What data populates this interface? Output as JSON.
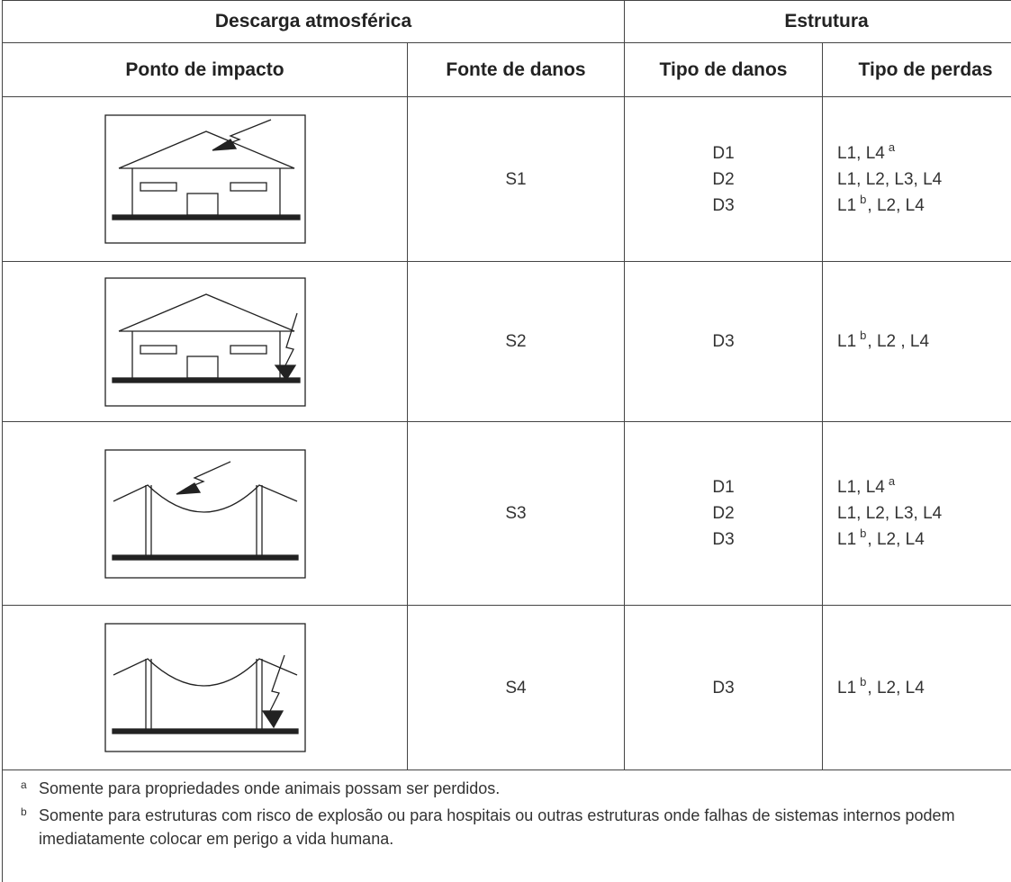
{
  "table": {
    "group_headers": [
      "Descarga atmosférica",
      "Estrutura"
    ],
    "column_headers": [
      "Ponto de impacto",
      "Fonte de danos",
      "Tipo de danos",
      "Tipo de perdas"
    ],
    "rows": [
      {
        "fonte": "S1",
        "danos": [
          "D1",
          "D2",
          "D3"
        ],
        "perdas": [
          [
            {
              "text": "L1, L4"
            },
            {
              "sup": "a"
            }
          ],
          [
            {
              "text": "L1, L2, L3, L4"
            }
          ],
          [
            {
              "text": "L1"
            },
            {
              "sup": "b"
            },
            {
              "text": ", L2, L4"
            }
          ]
        ]
      },
      {
        "fonte": "S2",
        "danos": [
          "D3"
        ],
        "perdas": [
          [
            {
              "text": "L1"
            },
            {
              "sup": "b"
            },
            {
              "text": ", L2 , L4"
            }
          ]
        ]
      },
      {
        "fonte": "S3",
        "danos": [
          "D1",
          "D2",
          "D3"
        ],
        "perdas": [
          [
            {
              "text": "L1, L4"
            },
            {
              "sup": "a"
            }
          ],
          [
            {
              "text": "L1, L2, L3, L4"
            }
          ],
          [
            {
              "text": "L1"
            },
            {
              "sup": "b"
            },
            {
              "text": ", L2, L4"
            }
          ]
        ]
      },
      {
        "fonte": "S4",
        "danos": [
          "D3"
        ],
        "perdas": [
          [
            {
              "text": "L1"
            },
            {
              "sup": "b"
            },
            {
              "text": ", L2, L4"
            }
          ]
        ]
      }
    ]
  },
  "footnotes": [
    {
      "mark": "a",
      "text": "Somente para propriedades onde animais possam ser perdidos."
    },
    {
      "mark": "b",
      "text": "Somente para estruturas com risco de explosão ou para hospitais ou outras estruturas onde falhas de sistemas internos podem imediatamente colocar em perigo a vida humana."
    }
  ]
}
